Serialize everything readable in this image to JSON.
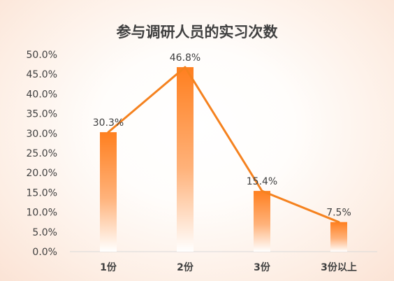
{
  "chart_data": {
    "type": "bar",
    "title": "参与调研人员的实习次数",
    "categories": [
      "1份",
      "2份",
      "3份",
      "3份以上"
    ],
    "values": [
      30.3,
      46.8,
      15.4,
      7.5
    ],
    "data_labels": [
      "30.3%",
      "46.8%",
      "15.4%",
      "7.5%"
    ],
    "overlay_line": true,
    "ylim": [
      0,
      50
    ],
    "y_ticks": [
      "0.0%",
      "5.0%",
      "10.0%",
      "15.0%",
      "20.0%",
      "25.0%",
      "30.0%",
      "35.0%",
      "40.0%",
      "45.0%",
      "50.0%"
    ],
    "grid": false,
    "legend": "none",
    "colors": {
      "bar": "#ff7f1f",
      "line": "#f5821f"
    }
  }
}
